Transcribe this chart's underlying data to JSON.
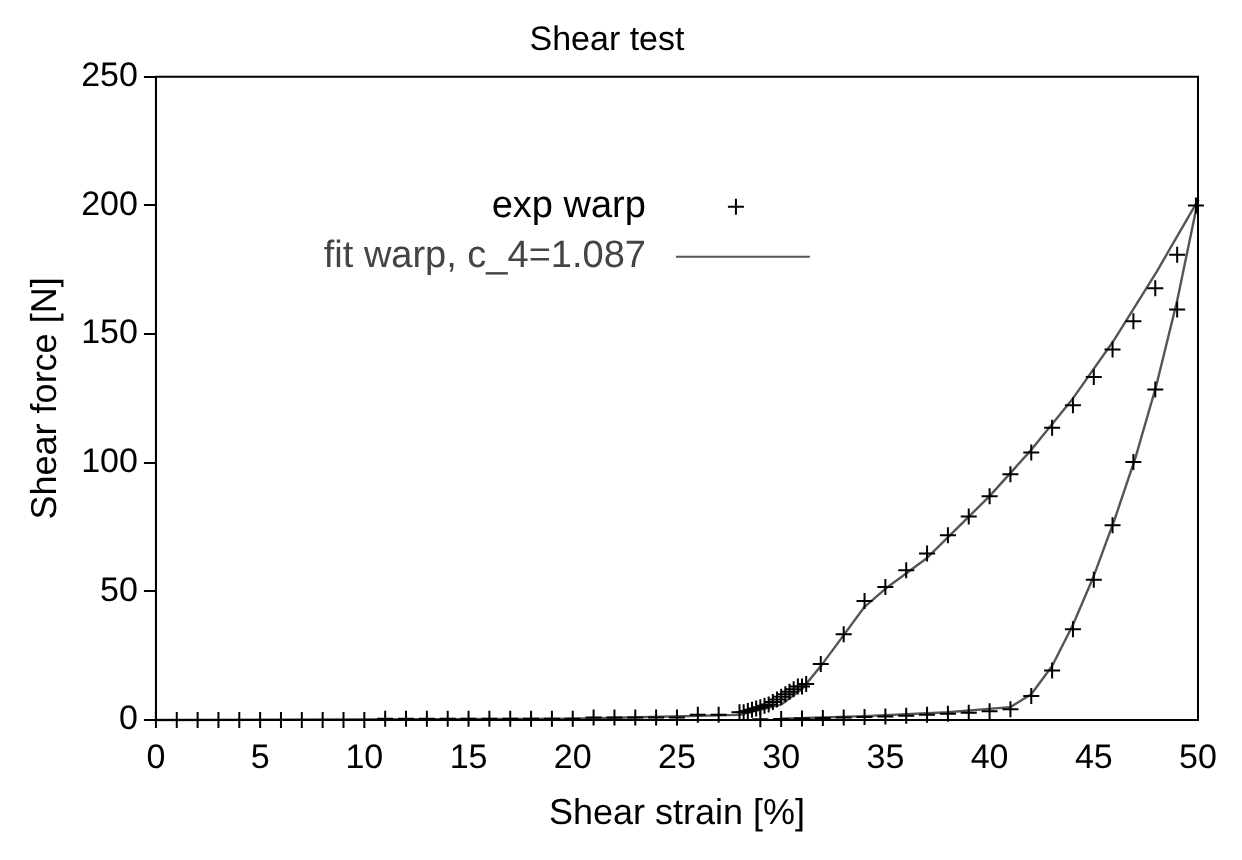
{
  "chart_data": {
    "type": "scatter",
    "title": "Shear test",
    "xlabel": "Shear strain [%]",
    "ylabel": "Shear force [N]",
    "xlim": [
      0,
      50
    ],
    "xticks": [
      0,
      5,
      10,
      15,
      20,
      25,
      30,
      35,
      40,
      45,
      50
    ],
    "ylim": [
      0,
      250
    ],
    "yticks": [
      0,
      50,
      100,
      150,
      200,
      250
    ],
    "grid": false,
    "legend": "top left",
    "series": [
      {
        "name": "exp warp",
        "type": "scatter",
        "marker": "cross",
        "color": "#000000",
        "x": [
          0,
          1,
          2,
          3,
          4,
          5,
          6,
          7,
          8,
          9,
          10,
          11,
          12,
          13,
          14,
          15,
          16,
          17,
          18,
          19,
          20,
          21,
          22,
          23,
          24,
          25,
          26,
          27,
          28,
          28.2,
          28.4,
          28.6,
          28.8,
          29,
          29.2,
          29.4,
          29.6,
          29.8,
          30,
          30.2,
          30.4,
          30.6,
          30.8,
          31,
          31.2,
          31.9,
          33,
          34,
          35,
          36,
          37,
          38,
          39,
          40,
          41,
          42,
          43,
          44,
          45,
          45.9,
          46.9,
          47.95,
          49,
          49.9,
          49,
          47.95,
          46.9,
          45.9,
          45,
          44,
          43,
          42,
          41,
          40,
          39,
          38,
          37,
          36,
          35,
          34,
          33,
          32,
          31,
          30,
          29
        ],
        "values": [
          0,
          0,
          0,
          0,
          0,
          0,
          0,
          0,
          0,
          0,
          0,
          0.5,
          0.5,
          0.5,
          0.5,
          0.5,
          0.5,
          0.5,
          0.5,
          0.5,
          0.5,
          1,
          1,
          1,
          1,
          1,
          2,
          2,
          3,
          3,
          3.5,
          4,
          4.5,
          5,
          5.5,
          6,
          7,
          8,
          9,
          10,
          11,
          12,
          13,
          13,
          14,
          21.8,
          33.3,
          46.3,
          51.7,
          58.2,
          64.7,
          71.8,
          79.1,
          87,
          95.5,
          104,
          113.6,
          122.3,
          133.3,
          144,
          155,
          167.8,
          180.8,
          200,
          159.6,
          128.5,
          100.3,
          75.7,
          54.5,
          35.3,
          19.2,
          9.3,
          4.2,
          3.4,
          2.8,
          2.4,
          2,
          1.7,
          1.4,
          1.2,
          1,
          0.8,
          0.6,
          0.4,
          0.3
        ]
      },
      {
        "name": "fit warp, c_4=1.087",
        "type": "line",
        "marker": "none",
        "line_style": "solid",
        "color": "#555555",
        "x": [
          0,
          20,
          28,
          30,
          31,
          32,
          33,
          34,
          35,
          37,
          40,
          42,
          44,
          46,
          48,
          50
        ],
        "values": [
          0,
          0.5,
          2,
          6,
          12,
          22,
          33,
          44,
          51,
          63,
          87,
          105,
          125,
          148,
          174,
          202
        ]
      },
      {
        "type": "line",
        "marker": "none",
        "line_style": "solid",
        "color": "#555555",
        "x": [
          50,
          49,
          48,
          47,
          46,
          45,
          44,
          43,
          42,
          41,
          38,
          34,
          30
        ],
        "values": [
          202,
          163,
          130,
          102,
          78,
          56,
          37,
          21,
          10,
          5,
          3,
          1.5,
          0.5
        ]
      }
    ]
  }
}
